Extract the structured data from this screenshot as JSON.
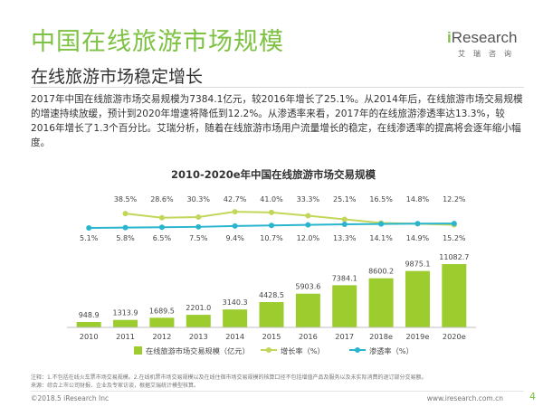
{
  "header": {
    "title": "中国在线旅游市场规模",
    "subtitle": "在线旅游市场稳定增长",
    "logo_i": "i",
    "logo_text": "Research",
    "logo_cn": "艾瑞咨询"
  },
  "description": "2017年中国在线旅游市场交易规模为7384.1亿元，较2016年增长了25.1%。从2014年后，在线旅游市场交易规模的增速持续放缓，预计到2020年增速将降低到12.2%。从渗透率来看，2017年的在线旅游渗透率达13.3%，较2016年增长了1.3个百分比。艾瑞分析，随着在线旅游市场用户流量增长的稳定，在线渗透率的提高将会逐年缩小幅度。",
  "chart_data": {
    "type": "bar",
    "title": "2010-2020e年中国在线旅游市场交易规模",
    "categories": [
      "2010",
      "2011",
      "2012",
      "2013",
      "2014",
      "2015",
      "2016",
      "2017",
      "2018e",
      "2019e",
      "2020e"
    ],
    "series": [
      {
        "name": "在线旅游市场交易规模（亿元）",
        "type": "bar",
        "values": [
          948.9,
          1313.9,
          1689.5,
          2201.0,
          3140.3,
          4428.5,
          5903.6,
          7384.1,
          8600.2,
          9875.1,
          11082.7
        ],
        "labels": [
          "948.9",
          "1313.9",
          "1689.5",
          "2201.0",
          "3140.3",
          "4428.5",
          "5903.6",
          "7384.1",
          "8600.2",
          "9875.1",
          "11082.7"
        ],
        "color": "#9ccc2d"
      },
      {
        "name": "增长率（%）",
        "type": "line",
        "values": [
          null,
          38.5,
          28.6,
          30.3,
          42.7,
          41.0,
          33.3,
          25.1,
          16.5,
          14.8,
          12.2
        ],
        "labels": [
          "",
          "38.5%",
          "28.6%",
          "30.3%",
          "42.7%",
          "41.0%",
          "33.3%",
          "25.1%",
          "16.5%",
          "14.8%",
          "12.2%"
        ],
        "color": "#c3d65a"
      },
      {
        "name": "渗透率（%）",
        "type": "line",
        "values": [
          5.1,
          5.8,
          6.5,
          7.5,
          9.4,
          10.7,
          12.0,
          13.3,
          14.1,
          14.9,
          15.2
        ],
        "labels": [
          "5.1%",
          "5.8%",
          "6.5%",
          "7.5%",
          "9.4%",
          "10.7%",
          "12.0%",
          "13.3%",
          "14.1%",
          "14.9%",
          "15.2%"
        ],
        "color": "#2ab5cf"
      }
    ],
    "legend_position": "bottom",
    "grid": false
  },
  "notes": {
    "line1": "注释：1.不包括在线火车票市场交易规模。2.在线机票市场交易规模以及在线住宿市场交易规模的核算口径不包括增值产品及服务以及未实际消费的退订部分交易额。",
    "line2": "来源：综合上市公司财报、企业及专家访谈，根据艾瑞统计模型核算。"
  },
  "footer": {
    "copyright": "©2018.5 iResearch Inc",
    "website": "www.iresearch.com.cn",
    "page": "4"
  }
}
